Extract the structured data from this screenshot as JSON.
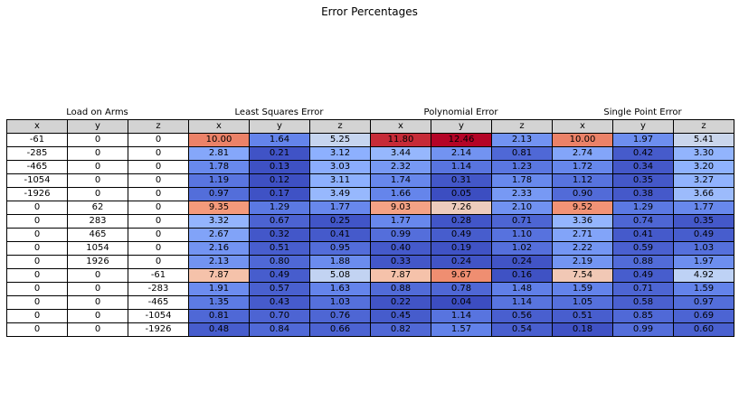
{
  "chart_data": {
    "type": "table",
    "title": "Error Percentages",
    "groups": [
      {
        "label": "Load on Arms",
        "columns": [
          "x",
          "y",
          "z"
        ]
      },
      {
        "label": "Least Squares Error",
        "columns": [
          "x",
          "y",
          "z"
        ]
      },
      {
        "label": "Polynomial Error",
        "columns": [
          "x",
          "y",
          "z"
        ]
      },
      {
        "label": "Single Point Error",
        "columns": [
          "x",
          "y",
          "z"
        ]
      }
    ],
    "colormap": "coolwarm",
    "color_range": [
      0,
      12.46
    ],
    "rows": [
      [
        "-61",
        "0",
        "0",
        "10.00",
        "1.64",
        "5.25",
        "11.80",
        "12.46",
        "2.13",
        "10.00",
        "1.97",
        "5.41"
      ],
      [
        "-285",
        "0",
        "0",
        "2.81",
        "0.21",
        "3.12",
        "3.44",
        "2.14",
        "0.81",
        "2.74",
        "0.42",
        "3.30"
      ],
      [
        "-465",
        "0",
        "0",
        "1.78",
        "0.13",
        "3.03",
        "2.32",
        "1.14",
        "1.23",
        "1.72",
        "0.34",
        "3.20"
      ],
      [
        "-1054",
        "0",
        "0",
        "1.19",
        "0.12",
        "3.11",
        "1.74",
        "0.31",
        "1.78",
        "1.12",
        "0.35",
        "3.27"
      ],
      [
        "-1926",
        "0",
        "0",
        "0.97",
        "0.17",
        "3.49",
        "1.66",
        "0.05",
        "2.33",
        "0.90",
        "0.38",
        "3.66"
      ],
      [
        "0",
        "62",
        "0",
        "9.35",
        "1.29",
        "1.77",
        "9.03",
        "7.26",
        "2.10",
        "9.52",
        "1.29",
        "1.77"
      ],
      [
        "0",
        "283",
        "0",
        "3.32",
        "0.67",
        "0.25",
        "1.77",
        "0.28",
        "0.71",
        "3.36",
        "0.74",
        "0.35"
      ],
      [
        "0",
        "465",
        "0",
        "2.67",
        "0.32",
        "0.41",
        "0.99",
        "0.49",
        "1.10",
        "2.71",
        "0.41",
        "0.49"
      ],
      [
        "0",
        "1054",
        "0",
        "2.16",
        "0.51",
        "0.95",
        "0.40",
        "0.19",
        "1.02",
        "2.22",
        "0.59",
        "1.03"
      ],
      [
        "0",
        "1926",
        "0",
        "2.13",
        "0.80",
        "1.88",
        "0.33",
        "0.24",
        "0.24",
        "2.19",
        "0.88",
        "1.97"
      ],
      [
        "0",
        "0",
        "-61",
        "7.87",
        "0.49",
        "5.08",
        "7.87",
        "9.67",
        "0.16",
        "7.54",
        "0.49",
        "4.92"
      ],
      [
        "0",
        "0",
        "-283",
        "1.91",
        "0.57",
        "1.63",
        "0.88",
        "0.78",
        "1.48",
        "1.59",
        "0.71",
        "1.59"
      ],
      [
        "0",
        "0",
        "-465",
        "1.35",
        "0.43",
        "1.03",
        "0.22",
        "0.04",
        "1.14",
        "1.05",
        "0.58",
        "0.97"
      ],
      [
        "0",
        "0",
        "-1054",
        "0.81",
        "0.70",
        "0.76",
        "0.45",
        "1.14",
        "0.56",
        "0.51",
        "0.85",
        "0.69"
      ],
      [
        "0",
        "0",
        "-1926",
        "0.48",
        "0.84",
        "0.66",
        "0.82",
        "1.57",
        "0.54",
        "0.18",
        "0.99",
        "0.60"
      ]
    ]
  }
}
